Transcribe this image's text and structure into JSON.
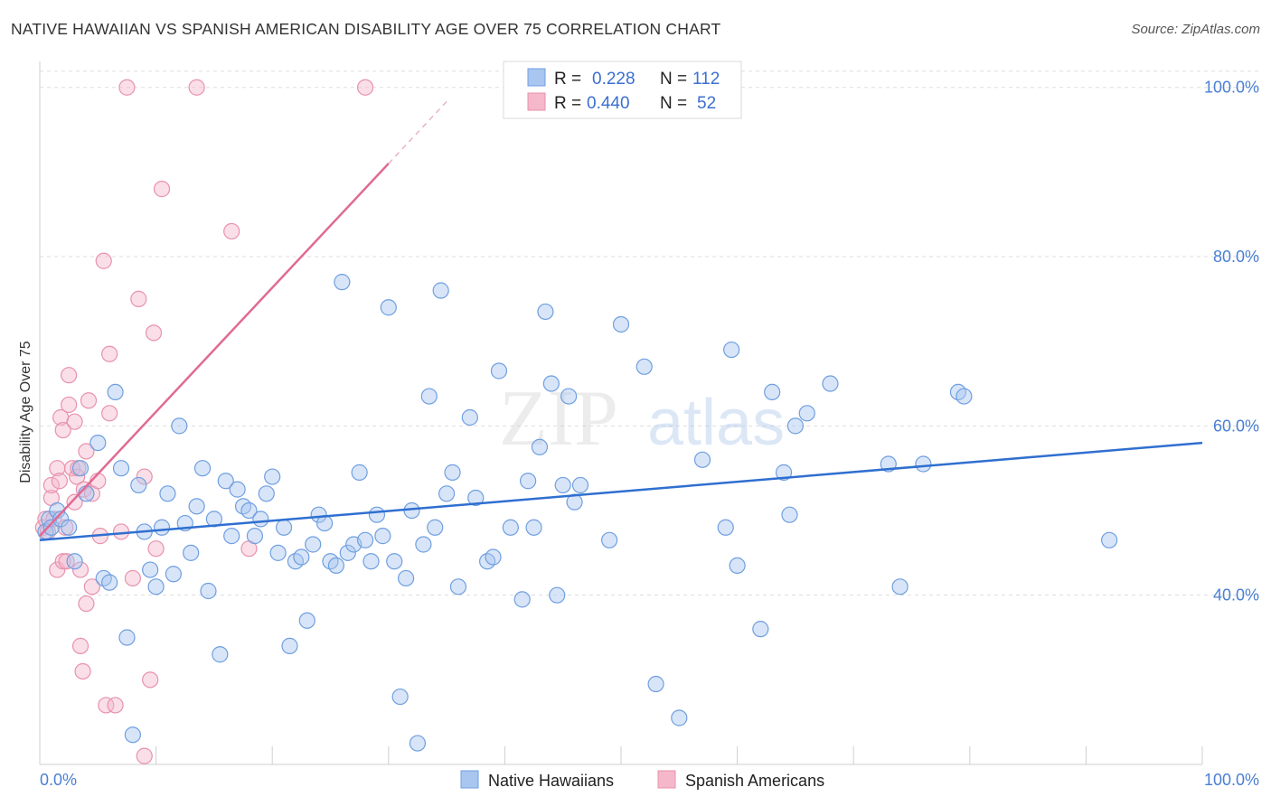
{
  "header": {
    "title": "NATIVE HAWAIIAN VS SPANISH AMERICAN DISABILITY AGE OVER 75 CORRELATION CHART",
    "source": "Source: ZipAtlas.com"
  },
  "watermark": {
    "zip": "ZIP",
    "atlas": "atlas"
  },
  "legend": {
    "rows": [
      {
        "r_label": "R =",
        "r_value": "0.228",
        "n_label": "N =",
        "n_value": "112",
        "color": "#a8c6f0"
      },
      {
        "r_label": "R =",
        "r_value": "0.440",
        "n_label": "N =",
        "n_value": "52",
        "color": "#f5b8cb"
      }
    ]
  },
  "bottom_legend": [
    {
      "label": "Native Hawaiians",
      "color": "#a8c6f0"
    },
    {
      "label": "Spanish Americans",
      "color": "#f5b8cb"
    }
  ],
  "colors": {
    "blue_fill": "#a8c6f0",
    "blue_stroke": "#6f9fe0",
    "blue_line": "#2f6fd0",
    "pink_fill": "#f5b8cb",
    "pink_stroke": "#e892ad",
    "pink_line": "#e06a93",
    "grid": "#dddddd",
    "tick_text": "#4a7fd4"
  },
  "chart_data": {
    "type": "scatter",
    "title": "NATIVE HAWAIIAN VS SPANISH AMERICAN DISABILITY AGE OVER 75 CORRELATION CHART",
    "xlabel": "",
    "ylabel": "Disability Age Over 75",
    "xlim": [
      0,
      100
    ],
    "ylim": [
      20,
      102
    ],
    "y_ticks": [
      40,
      60,
      80,
      100
    ],
    "y_tick_labels": [
      "40.0%",
      "60.0%",
      "80.0%",
      "100.0%"
    ],
    "x_tick_labels": [
      "0.0%",
      "100.0%"
    ],
    "grid": true,
    "legend_position": "top-center",
    "series": [
      {
        "name": "Native Hawaiians",
        "r": 0.228,
        "n": 112,
        "trend": {
          "x": [
            0,
            100
          ],
          "y": [
            46.5,
            58.0
          ]
        },
        "points": [
          [
            0.5,
            47.5
          ],
          [
            0.8,
            49
          ],
          [
            1,
            48
          ],
          [
            1.5,
            50
          ],
          [
            1.8,
            49
          ],
          [
            2.5,
            48
          ],
          [
            3,
            44
          ],
          [
            3.5,
            55
          ],
          [
            4,
            52
          ],
          [
            5,
            58
          ],
          [
            5.5,
            42
          ],
          [
            6,
            41.5
          ],
          [
            6.5,
            64
          ],
          [
            7,
            55
          ],
          [
            7.5,
            35
          ],
          [
            8,
            23.5
          ],
          [
            8.5,
            53
          ],
          [
            9,
            47.5
          ],
          [
            9.5,
            43
          ],
          [
            10,
            41
          ],
          [
            10.5,
            48
          ],
          [
            11,
            52
          ],
          [
            11.5,
            42.5
          ],
          [
            12,
            60
          ],
          [
            12.5,
            48.5
          ],
          [
            13,
            45
          ],
          [
            13.5,
            50.5
          ],
          [
            14,
            55
          ],
          [
            14.5,
            40.5
          ],
          [
            15,
            49
          ],
          [
            15.5,
            33
          ],
          [
            16,
            53.5
          ],
          [
            16.5,
            47
          ],
          [
            17,
            52.5
          ],
          [
            17.5,
            50.5
          ],
          [
            18,
            50
          ],
          [
            18.5,
            47
          ],
          [
            19,
            49
          ],
          [
            19.5,
            52
          ],
          [
            20,
            54
          ],
          [
            20.5,
            45
          ],
          [
            21,
            48
          ],
          [
            21.5,
            34
          ],
          [
            22,
            44
          ],
          [
            22.5,
            44.5
          ],
          [
            23,
            37
          ],
          [
            23.5,
            46
          ],
          [
            24,
            49.5
          ],
          [
            24.5,
            48.5
          ],
          [
            25,
            44
          ],
          [
            25.5,
            43.5
          ],
          [
            26,
            77
          ],
          [
            26.5,
            45
          ],
          [
            27,
            46
          ],
          [
            27.5,
            54.5
          ],
          [
            28,
            46.5
          ],
          [
            28.5,
            44
          ],
          [
            29,
            49.5
          ],
          [
            29.5,
            47
          ],
          [
            30,
            74
          ],
          [
            30.5,
            44
          ],
          [
            31,
            28
          ],
          [
            31.5,
            42
          ],
          [
            32,
            50
          ],
          [
            32.5,
            22.5
          ],
          [
            33,
            46
          ],
          [
            33.5,
            63.5
          ],
          [
            34,
            48
          ],
          [
            34.5,
            76
          ],
          [
            35,
            52
          ],
          [
            35.5,
            54.5
          ],
          [
            36,
            41
          ],
          [
            37,
            61
          ],
          [
            37.5,
            51.5
          ],
          [
            38.5,
            44
          ],
          [
            39,
            44.5
          ],
          [
            39.5,
            66.5
          ],
          [
            40.5,
            48
          ],
          [
            41.5,
            39.5
          ],
          [
            42,
            53.5
          ],
          [
            42.5,
            48
          ],
          [
            43,
            57.5
          ],
          [
            43.5,
            73.5
          ],
          [
            44,
            65
          ],
          [
            44.5,
            40
          ],
          [
            45,
            53
          ],
          [
            45.5,
            63.5
          ],
          [
            46,
            51
          ],
          [
            46.5,
            53
          ],
          [
            49,
            46.5
          ],
          [
            50,
            72
          ],
          [
            52,
            67
          ],
          [
            53,
            29.5
          ],
          [
            55,
            25.5
          ],
          [
            57,
            56
          ],
          [
            59,
            48
          ],
          [
            59.5,
            69
          ],
          [
            60,
            43.5
          ],
          [
            62,
            36
          ],
          [
            63,
            64
          ],
          [
            64,
            54.5
          ],
          [
            64.5,
            49.5
          ],
          [
            65,
            60
          ],
          [
            66,
            61.5
          ],
          [
            68,
            65
          ],
          [
            73,
            55.5
          ],
          [
            74,
            41
          ],
          [
            76,
            55.5
          ],
          [
            79,
            64
          ],
          [
            79.5,
            63.5
          ],
          [
            92,
            46.5
          ]
        ]
      },
      {
        "name": "Spanish Americans",
        "r": 0.44,
        "n": 52,
        "trend": {
          "x": [
            0,
            30
          ],
          "y": [
            47.0,
            91.0
          ]
        },
        "points": [
          [
            0.3,
            48
          ],
          [
            0.5,
            49
          ],
          [
            0.7,
            47.5
          ],
          [
            1,
            51.5
          ],
          [
            1,
            53
          ],
          [
            1.2,
            49
          ],
          [
            1.5,
            55
          ],
          [
            1.5,
            43
          ],
          [
            1.7,
            53.5
          ],
          [
            1.8,
            61
          ],
          [
            2,
            59.5
          ],
          [
            2,
            44
          ],
          [
            2.2,
            48
          ],
          [
            2.3,
            44
          ],
          [
            2.5,
            66
          ],
          [
            2.5,
            62.5
          ],
          [
            2.8,
            55
          ],
          [
            3,
            51
          ],
          [
            3,
            60.5
          ],
          [
            3.2,
            54
          ],
          [
            3.3,
            55
          ],
          [
            3.5,
            34
          ],
          [
            3.5,
            43
          ],
          [
            3.7,
            31
          ],
          [
            3.8,
            52.5
          ],
          [
            4,
            57
          ],
          [
            4,
            39
          ],
          [
            4.2,
            63
          ],
          [
            4.5,
            52
          ],
          [
            4.5,
            41
          ],
          [
            5,
            53.5
          ],
          [
            5.2,
            47
          ],
          [
            5.5,
            79.5
          ],
          [
            5.7,
            27
          ],
          [
            6,
            68.5
          ],
          [
            6,
            61.5
          ],
          [
            6.5,
            27
          ],
          [
            7,
            47.5
          ],
          [
            7.5,
            100
          ],
          [
            8,
            42
          ],
          [
            8.5,
            75
          ],
          [
            9,
            21
          ],
          [
            9,
            54
          ],
          [
            9.5,
            30
          ],
          [
            9.8,
            71
          ],
          [
            10,
            45.5
          ],
          [
            10.5,
            88
          ],
          [
            13.5,
            100
          ],
          [
            16.5,
            83
          ],
          [
            18,
            45.5
          ],
          [
            28,
            100
          ]
        ]
      }
    ]
  }
}
